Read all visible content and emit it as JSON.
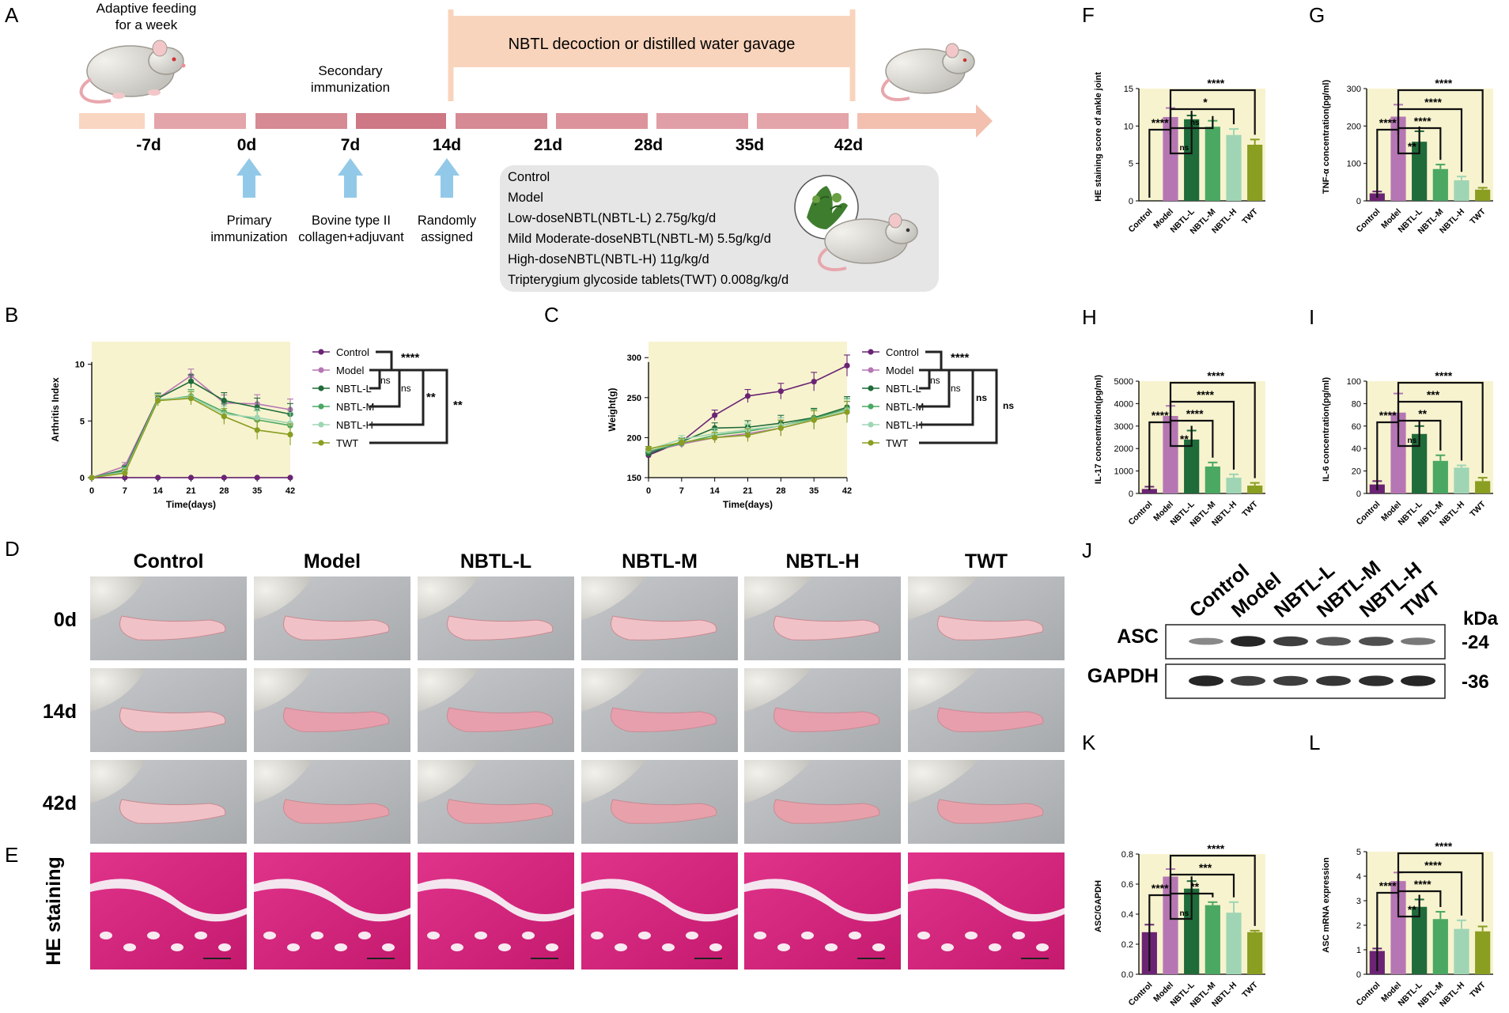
{
  "colors": {
    "Control": "#6b2474",
    "Model": "#b676b4",
    "NBTL-L": "#1f6b3a",
    "NBTL-M": "#4aa862",
    "NBTL-H": "#9fd5b4",
    "TWT": "#8a9e22",
    "panel_bg": "#f7f3cf",
    "timeline": "#c97f8a",
    "box": "#f9d2b8",
    "gray": "#e6e6e6",
    "arrow": "#93c9e8"
  },
  "timeline": {
    "label": "A",
    "adapt": "Adaptive feeding for a week",
    "secondary": "Secondary immunization",
    "gavage": "NBTL decoction or distilled water gavage",
    "days": [
      "-7d",
      "0d",
      "7d",
      "14d",
      "21d",
      "28d",
      "35d",
      "42d"
    ],
    "arrows": [
      "Primary immunization",
      "Bovine type II collagen+adjuvant",
      "Randomly assigned"
    ],
    "groups": [
      "Control",
      "Model",
      "Low-doseNBTL(NBTL-L)  2.75g/kg/d",
      "Mild Moderate-doseNBTL(NBTL-M)  5.5g/kg/d",
      "High-doseNBTL(NBTL-H)  11g/kg/d",
      "Tripterygium glycoside tablets(TWT)  0.008g/kg/d"
    ]
  },
  "chart_data": [
    {
      "id": "B",
      "type": "line",
      "xlabel": "Time(days)",
      "ylabel": "Arthritis Index",
      "x": [
        0,
        7,
        14,
        21,
        28,
        35,
        42
      ],
      "xlim": [
        0,
        42
      ],
      "ylim": [
        0,
        12
      ],
      "yticks": [
        0,
        5,
        10
      ],
      "series": [
        {
          "name": "Control",
          "values": [
            0,
            0,
            0,
            0,
            0,
            0,
            0
          ]
        },
        {
          "name": "Model",
          "values": [
            0,
            1,
            7,
            9,
            6.6,
            6.5,
            6
          ]
        },
        {
          "name": "NBTL-L",
          "values": [
            0,
            0.7,
            7,
            8.5,
            6.8,
            6.2,
            5.6
          ]
        },
        {
          "name": "NBTL-M",
          "values": [
            0,
            0.6,
            6.8,
            7.2,
            5.8,
            5.1,
            4.6
          ]
        },
        {
          "name": "NBTL-H",
          "values": [
            0,
            0.5,
            6.9,
            7.1,
            5.6,
            5.3,
            4.8
          ]
        },
        {
          "name": "TWT",
          "values": [
            0,
            0.4,
            6.8,
            7,
            5.4,
            4.2,
            3.8
          ]
        }
      ],
      "sig": [
        "****",
        "ns",
        "ns",
        "**",
        "**"
      ]
    },
    {
      "id": "C",
      "type": "line",
      "xlabel": "Time(days)",
      "ylabel": "Weight(g)",
      "x": [
        0,
        7,
        14,
        21,
        28,
        35,
        42
      ],
      "xlim": [
        0,
        42
      ],
      "ylim": [
        150,
        320
      ],
      "yticks": [
        150,
        200,
        250,
        300
      ],
      "series": [
        {
          "name": "Control",
          "values": [
            178,
            195,
            228,
            252,
            258,
            270,
            290
          ]
        },
        {
          "name": "Model",
          "values": [
            182,
            192,
            200,
            205,
            212,
            222,
            232
          ]
        },
        {
          "name": "NBTL-L",
          "values": [
            180,
            195,
            212,
            213,
            218,
            225,
            238
          ]
        },
        {
          "name": "NBTL-M",
          "values": [
            183,
            193,
            203,
            208,
            215,
            224,
            236
          ]
        },
        {
          "name": "NBTL-H",
          "values": [
            185,
            198,
            205,
            210,
            215,
            222,
            234
          ]
        },
        {
          "name": "TWT",
          "values": [
            186,
            194,
            200,
            203,
            212,
            222,
            232
          ]
        }
      ],
      "sig": [
        "****",
        "ns",
        "ns",
        "ns",
        "ns"
      ]
    },
    {
      "id": "F",
      "type": "bar",
      "ylabel": "HE staining score of ankle joint",
      "categories": [
        "Control",
        "Model",
        "NBTL-L",
        "NBTL-M",
        "NBTL-H",
        "TWT"
      ],
      "values": [
        0,
        11.2,
        10.9,
        9.9,
        8.8,
        7.5
      ],
      "errors": [
        0,
        1.2,
        0.5,
        0.8,
        0.8,
        0.7
      ],
      "ylim": [
        0,
        15
      ],
      "yticks": [
        "0",
        "5",
        "10",
        "15"
      ],
      "sig": [
        "****",
        "ns",
        "ns",
        "*",
        "****"
      ]
    },
    {
      "id": "G",
      "type": "bar",
      "ylabel": "TNF-α concentration(pg/ml)",
      "categories": [
        "Control",
        "Model",
        "NBTL-L",
        "NBTL-M",
        "NBTL-H",
        "TWT"
      ],
      "values": [
        20,
        225,
        158,
        85,
        55,
        30
      ],
      "errors": [
        5,
        32,
        28,
        12,
        10,
        5
      ],
      "ylim": [
        0,
        300
      ],
      "yticks": [
        "0",
        "100",
        "200",
        "300"
      ],
      "sig": [
        "****",
        "**",
        "****",
        "****",
        "****"
      ]
    },
    {
      "id": "H",
      "type": "bar",
      "ylabel": "IL-17 concentration(pg/ml)",
      "categories": [
        "Control",
        "Model",
        "NBTL-L",
        "NBTL-M",
        "NBTL-H",
        "TWT"
      ],
      "values": [
        200,
        3450,
        2400,
        1200,
        700,
        350
      ],
      "errors": [
        100,
        450,
        400,
        180,
        150,
        120
      ],
      "ylim": [
        0,
        5000
      ],
      "yticks": [
        "0",
        "1000",
        "2000",
        "3000",
        "4000",
        "5000"
      ],
      "sig": [
        "****",
        "**",
        "****",
        "****",
        "****"
      ]
    },
    {
      "id": "I",
      "type": "bar",
      "ylabel": "IL-6 concentration(pg/ml)",
      "categories": [
        "Control",
        "Model",
        "NBTL-L",
        "NBTL-M",
        "NBTL-H",
        "TWT"
      ],
      "values": [
        8,
        72,
        53,
        29,
        23,
        11
      ],
      "errors": [
        3,
        17,
        7,
        5,
        2,
        3
      ],
      "ylim": [
        0,
        100
      ],
      "yticks": [
        "0",
        "20",
        "40",
        "60",
        "80",
        "100"
      ],
      "sig": [
        "****",
        "ns",
        "**",
        "***",
        "****"
      ]
    },
    {
      "id": "K",
      "type": "bar",
      "ylabel": "ASC/GAPDH",
      "categories": [
        "Control",
        "Model",
        "NBTL-L",
        "NBTL-M",
        "NBTL-H",
        "TWT"
      ],
      "values": [
        0.28,
        0.65,
        0.57,
        0.46,
        0.41,
        0.28
      ],
      "errors": [
        0.05,
        0.05,
        0.05,
        0.02,
        0.07,
        0.01
      ],
      "ylim": [
        0,
        0.8
      ],
      "yticks": [
        "0.0",
        "0.2",
        "0.4",
        "0.6",
        "0.8"
      ],
      "sig": [
        "****",
        "ns",
        "**",
        "***",
        "****"
      ]
    },
    {
      "id": "L",
      "type": "bar",
      "ylabel": "ASC mRNA expression",
      "categories": [
        "Control",
        "Model",
        "NBTL-L",
        "NBTL-M",
        "NBTL-H",
        "TWT"
      ],
      "values": [
        0.95,
        3.8,
        2.75,
        2.25,
        1.85,
        1.75
      ],
      "errors": [
        0.1,
        0.35,
        0.3,
        0.3,
        0.35,
        0.2
      ],
      "ylim": [
        0,
        5
      ],
      "yticks": [
        "0",
        "1",
        "2",
        "3",
        "4",
        "5"
      ],
      "sig": [
        "****",
        "**",
        "****",
        "****",
        "****"
      ]
    }
  ],
  "photos": {
    "label_D": "D",
    "label_E": "E",
    "columns": [
      "Control",
      "Model",
      "NBTL-L",
      "NBTL-M",
      "NBTL-H",
      "TWT"
    ],
    "rows": [
      "0d",
      "14d",
      "42d"
    ],
    "he_label": "HE staining"
  },
  "blot": {
    "label": "J",
    "lanes": [
      "Control",
      "Model",
      "NBTL-L",
      "NBTL-M",
      "NBTL-H",
      "TWT"
    ],
    "bands": [
      "ASC",
      "GAPDH"
    ],
    "kda_title": "kDa",
    "kda": [
      "-24",
      "-36"
    ],
    "asc": [
      0.35,
      0.95,
      0.8,
      0.65,
      0.7,
      0.45
    ],
    "gapdh": [
      0.95,
      0.8,
      0.8,
      0.85,
      0.9,
      0.95
    ]
  }
}
